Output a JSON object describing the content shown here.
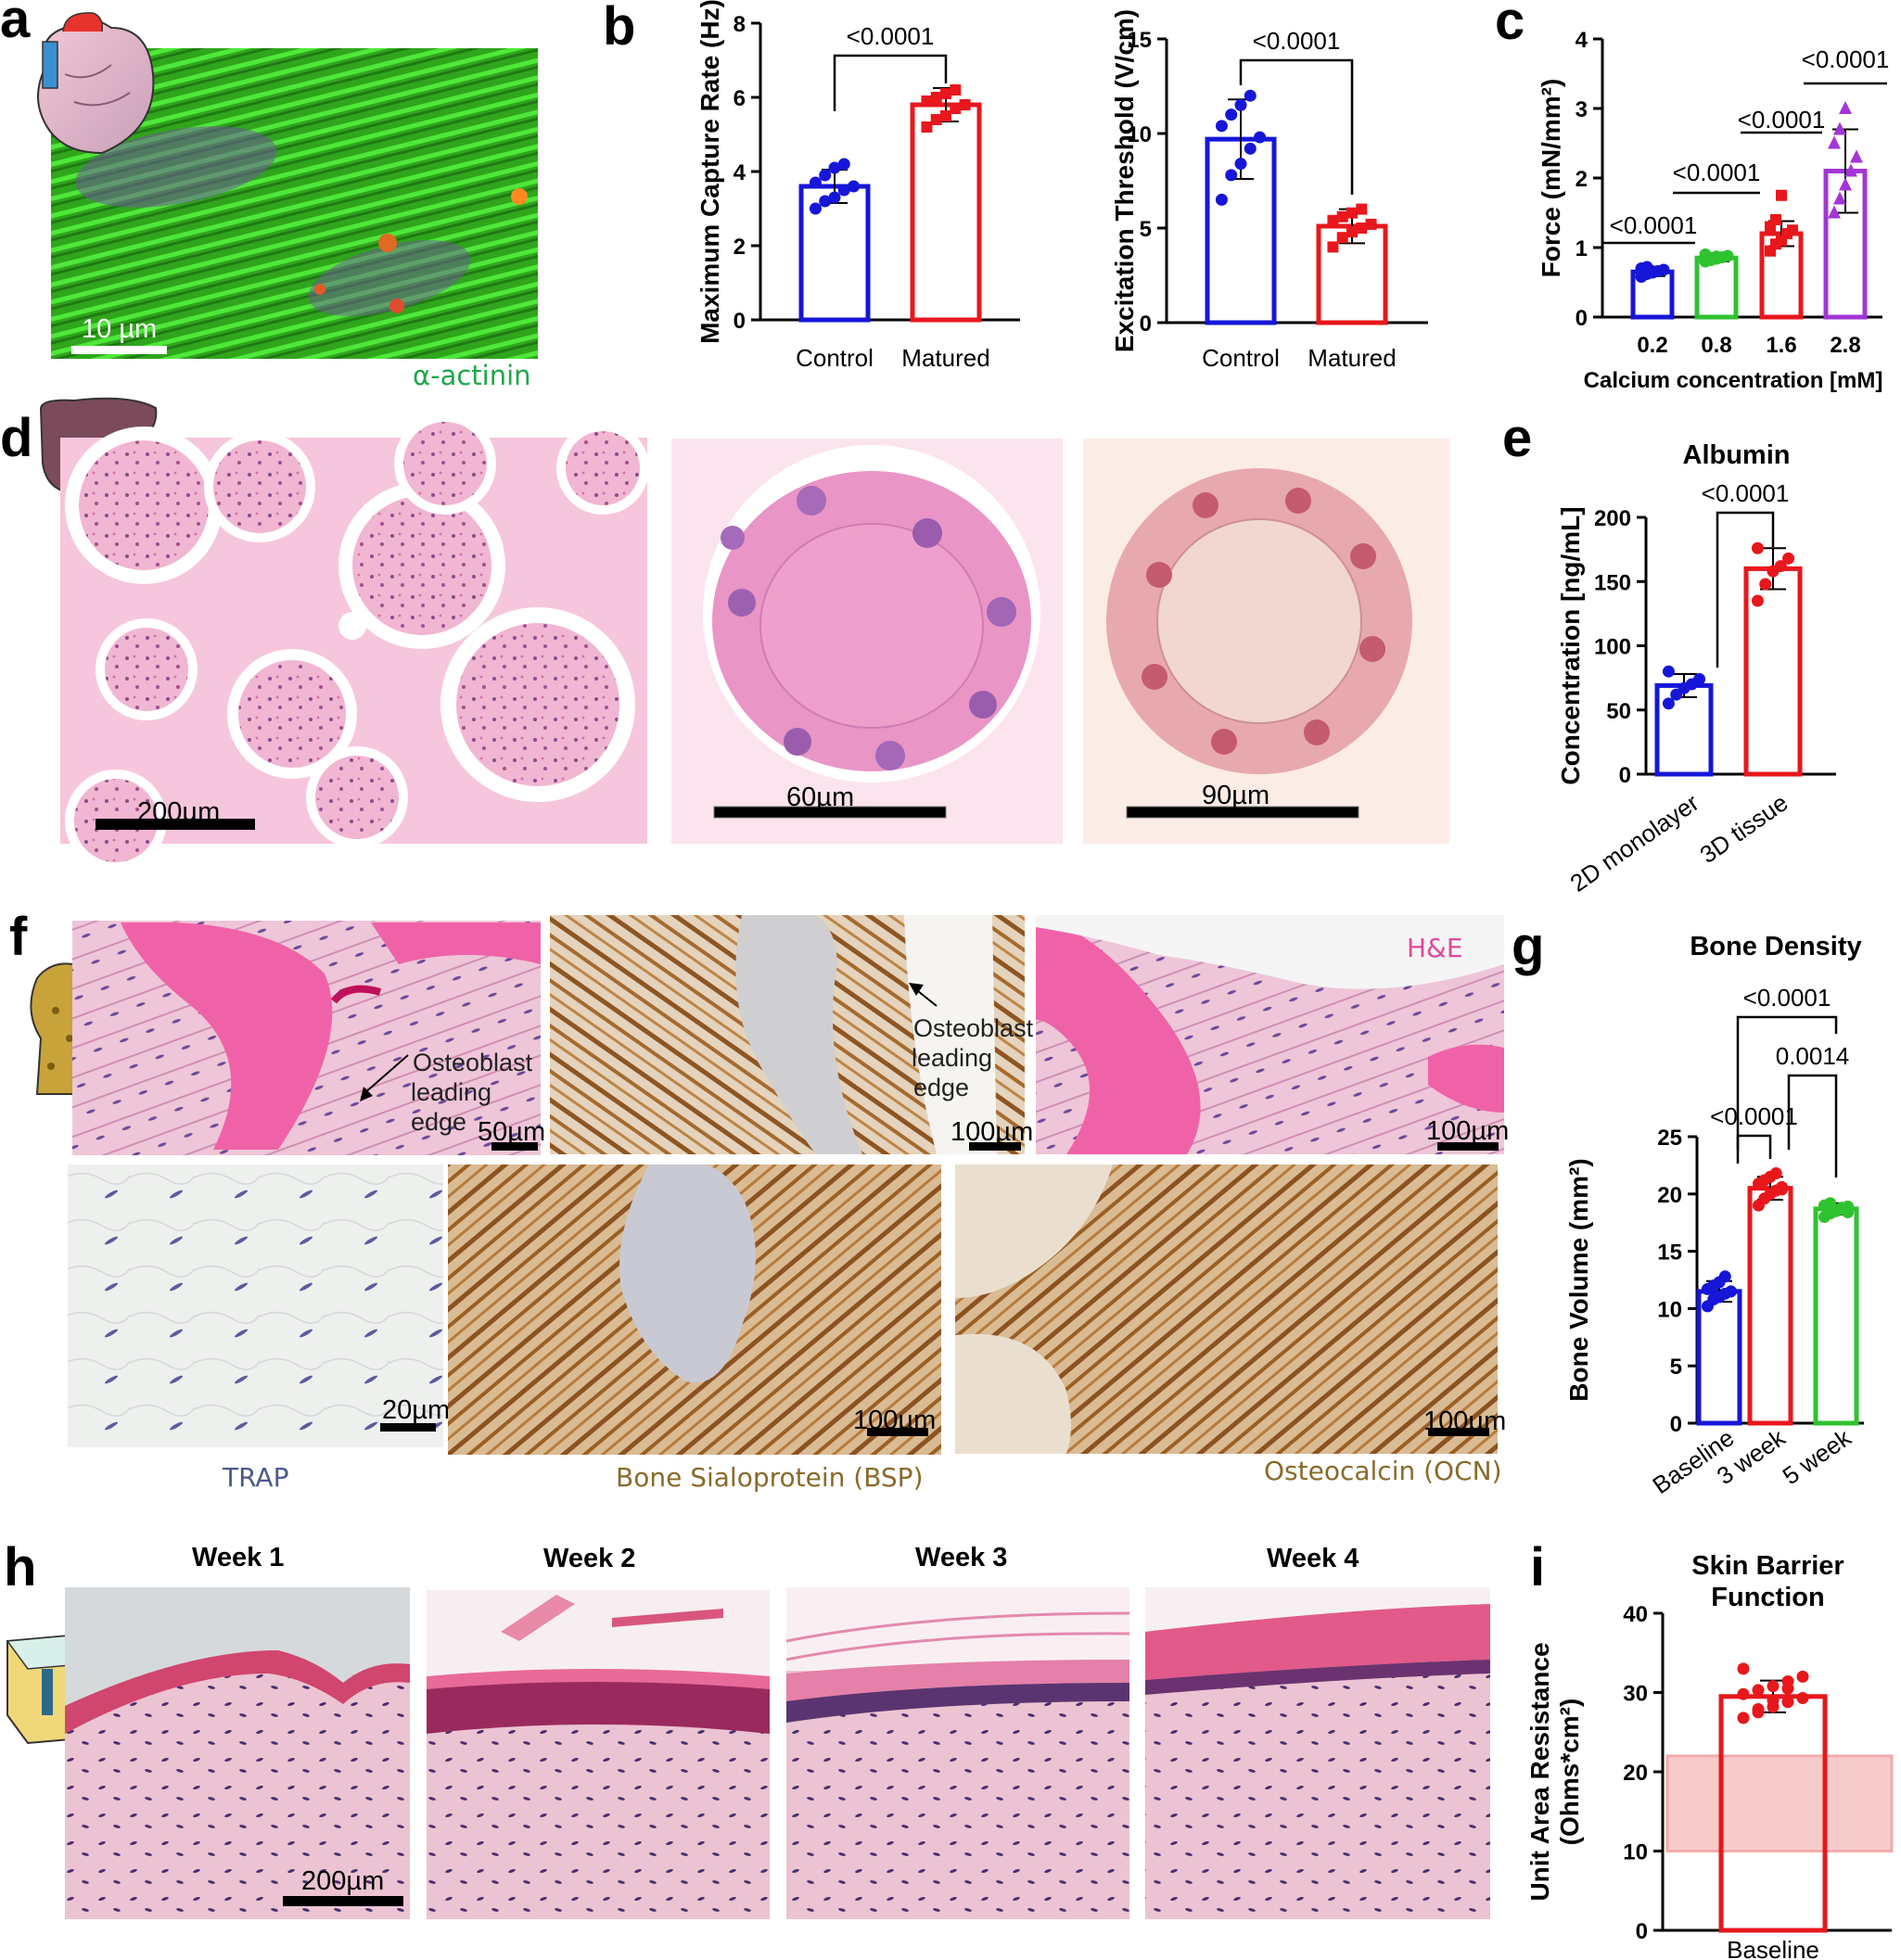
{
  "panels": {
    "a": {
      "label": "a",
      "stain": "α-actinin",
      "scalebar": "10 µm"
    },
    "b": {
      "label": "b"
    },
    "c": {
      "label": "c"
    },
    "d": {
      "label": "d",
      "scalebars": [
        "200µm",
        "60µm",
        "90µm"
      ]
    },
    "e": {
      "label": "e"
    },
    "f": {
      "label": "f",
      "top_label": "H&E",
      "annot1": [
        "Osteoblast",
        "leading",
        "edge"
      ],
      "annot2": [
        "Osteoblast",
        "leading",
        "edge"
      ],
      "scalebars": [
        "50µm",
        "100µm",
        "100µm",
        "20µm",
        "100µm",
        "100µm"
      ],
      "captions": [
        "TRAP",
        "Bone Sialoprotein (BSP)",
        "Osteocalcin (OCN)"
      ]
    },
    "g": {
      "label": "g"
    },
    "h": {
      "label": "h",
      "weeks": [
        "Week 1",
        "Week 2",
        "Week 3",
        "Week 4"
      ],
      "scalebar": "200µm"
    },
    "i": {
      "label": "i"
    }
  },
  "colors": {
    "blue": "#1616d8",
    "red": "#e8171c",
    "green": "#2fc22f",
    "purple": "#a335d6",
    "pink_band": "#f7c2c2"
  },
  "chart_data": [
    {
      "id": "b1",
      "type": "bar",
      "categories": [
        "Control",
        "Matured"
      ],
      "values": [
        3.6,
        5.8
      ],
      "errors": [
        0.45,
        0.45
      ],
      "points": [
        [
          3.0,
          3.2,
          3.3,
          3.5,
          3.6,
          3.7,
          3.9,
          4.1,
          4.2
        ],
        [
          5.2,
          5.4,
          5.5,
          5.7,
          5.8,
          5.9,
          6.0,
          6.1,
          6.2
        ]
      ],
      "ylabel": "Maximum Capture Rate (Hz)",
      "ylim": [
        0,
        8
      ],
      "yticks": [
        0,
        2,
        4,
        6,
        8
      ],
      "comparisons": [
        {
          "pair": [
            0,
            1
          ],
          "p": "<0.0001"
        }
      ]
    },
    {
      "id": "b2",
      "type": "bar",
      "categories": [
        "Control",
        "Matured"
      ],
      "values": [
        9.7,
        5.1
      ],
      "errors": [
        2.1,
        0.9
      ],
      "points": [
        [
          6.5,
          7.8,
          8.4,
          9.2,
          9.8,
          10.4,
          11.0,
          11.5,
          12.0
        ],
        [
          4.0,
          4.5,
          4.8,
          5.0,
          5.2,
          5.4,
          5.6,
          5.8,
          6.0
        ]
      ],
      "ylabel": "Excitation Threshold (V/cm)",
      "ylim": [
        0,
        15
      ],
      "yticks": [
        0,
        5,
        10,
        15
      ],
      "comparisons": [
        {
          "pair": [
            0,
            1
          ],
          "p": "<0.0001"
        }
      ]
    },
    {
      "id": "c",
      "type": "bar",
      "categories": [
        "0.2",
        "0.8",
        "1.6",
        "2.8"
      ],
      "values": [
        0.65,
        0.85,
        1.2,
        2.1
      ],
      "errors": [
        0.06,
        0.05,
        0.18,
        0.6
      ],
      "points": [
        [
          0.58,
          0.62,
          0.64,
          0.66,
          0.68,
          0.7,
          0.72,
          0.66
        ],
        [
          0.8,
          0.82,
          0.84,
          0.86,
          0.88,
          0.9,
          0.85,
          0.87
        ],
        [
          0.95,
          1.05,
          1.1,
          1.2,
          1.25,
          1.3,
          1.4,
          1.75
        ],
        [
          1.5,
          1.7,
          1.9,
          2.1,
          2.3,
          2.5,
          2.7,
          3.0
        ]
      ],
      "xlabel": "Calcium concentration [mM]",
      "ylabel": "Force (mN/mm²)",
      "ylim": [
        0,
        4
      ],
      "yticks": [
        0,
        1,
        2,
        3,
        4
      ],
      "comparisons": [
        {
          "pair": [
            0,
            0
          ],
          "p": "<0.0001"
        },
        {
          "pair": [
            0,
            1
          ],
          "p": "<0.0001"
        },
        {
          "pair": [
            1,
            2
          ],
          "p": "<0.0001"
        },
        {
          "pair": [
            2,
            3
          ],
          "p": "<0.0001"
        }
      ]
    },
    {
      "id": "e",
      "type": "bar",
      "title": "Albumin",
      "categories": [
        "2D monolayer",
        "3D tissue"
      ],
      "values": [
        69,
        160
      ],
      "errors": [
        9,
        16
      ],
      "points": [
        [
          55,
          62,
          67,
          70,
          74,
          80
        ],
        [
          135,
          148,
          158,
          162,
          168,
          176
        ]
      ],
      "ylabel": "Concentration [ng/mL]",
      "ylim": [
        0,
        200
      ],
      "yticks": [
        0,
        50,
        100,
        150,
        200
      ],
      "comparisons": [
        {
          "pair": [
            0,
            1
          ],
          "p": "<0.0001"
        }
      ]
    },
    {
      "id": "g",
      "type": "bar",
      "title": "Bone Density",
      "categories": [
        "Baseline",
        "3 week",
        "5 week"
      ],
      "values": [
        11.5,
        20.5,
        18.7
      ],
      "errors": [
        0.9,
        1.0,
        0.5
      ],
      "points": [
        [
          10.2,
          10.8,
          11.0,
          11.3,
          11.5,
          11.7,
          12.0,
          12.3,
          12.8
        ],
        [
          19.0,
          19.6,
          20.0,
          20.3,
          20.6,
          20.9,
          21.2,
          21.5,
          21.8,
          20.4
        ],
        [
          18.0,
          18.3,
          18.5,
          18.7,
          18.9,
          19.0,
          19.2,
          18.6,
          18.8,
          18.4
        ]
      ],
      "ylabel": "Bone Volume (mm²)",
      "ylim": [
        0,
        25
      ],
      "yticks": [
        0,
        5,
        10,
        15,
        20,
        25
      ],
      "comparisons": [
        {
          "pair": [
            0,
            1
          ],
          "p": "<0.0001"
        },
        {
          "pair": [
            1,
            2
          ],
          "p": "0.0014"
        },
        {
          "pair": [
            0,
            2
          ],
          "p": "<0.0001"
        }
      ]
    },
    {
      "id": "i",
      "type": "bar",
      "title": [
        "Skin Barrier",
        "Function"
      ],
      "categories": [
        "Baseline"
      ],
      "values": [
        29.5
      ],
      "errors": [
        2.0
      ],
      "points": [
        [
          26.8,
          27.5,
          28.2,
          28.8,
          29.3,
          29.8,
          30.3,
          30.8,
          31.4,
          32.0,
          33.0,
          27.9,
          29.0,
          30.5
        ]
      ],
      "ylabel": [
        "Unit Area Resistance",
        "(Ohms*cm²)"
      ],
      "ylim": [
        0,
        40
      ],
      "yticks": [
        0,
        10,
        20,
        30,
        40
      ],
      "band": [
        10,
        22
      ]
    }
  ]
}
